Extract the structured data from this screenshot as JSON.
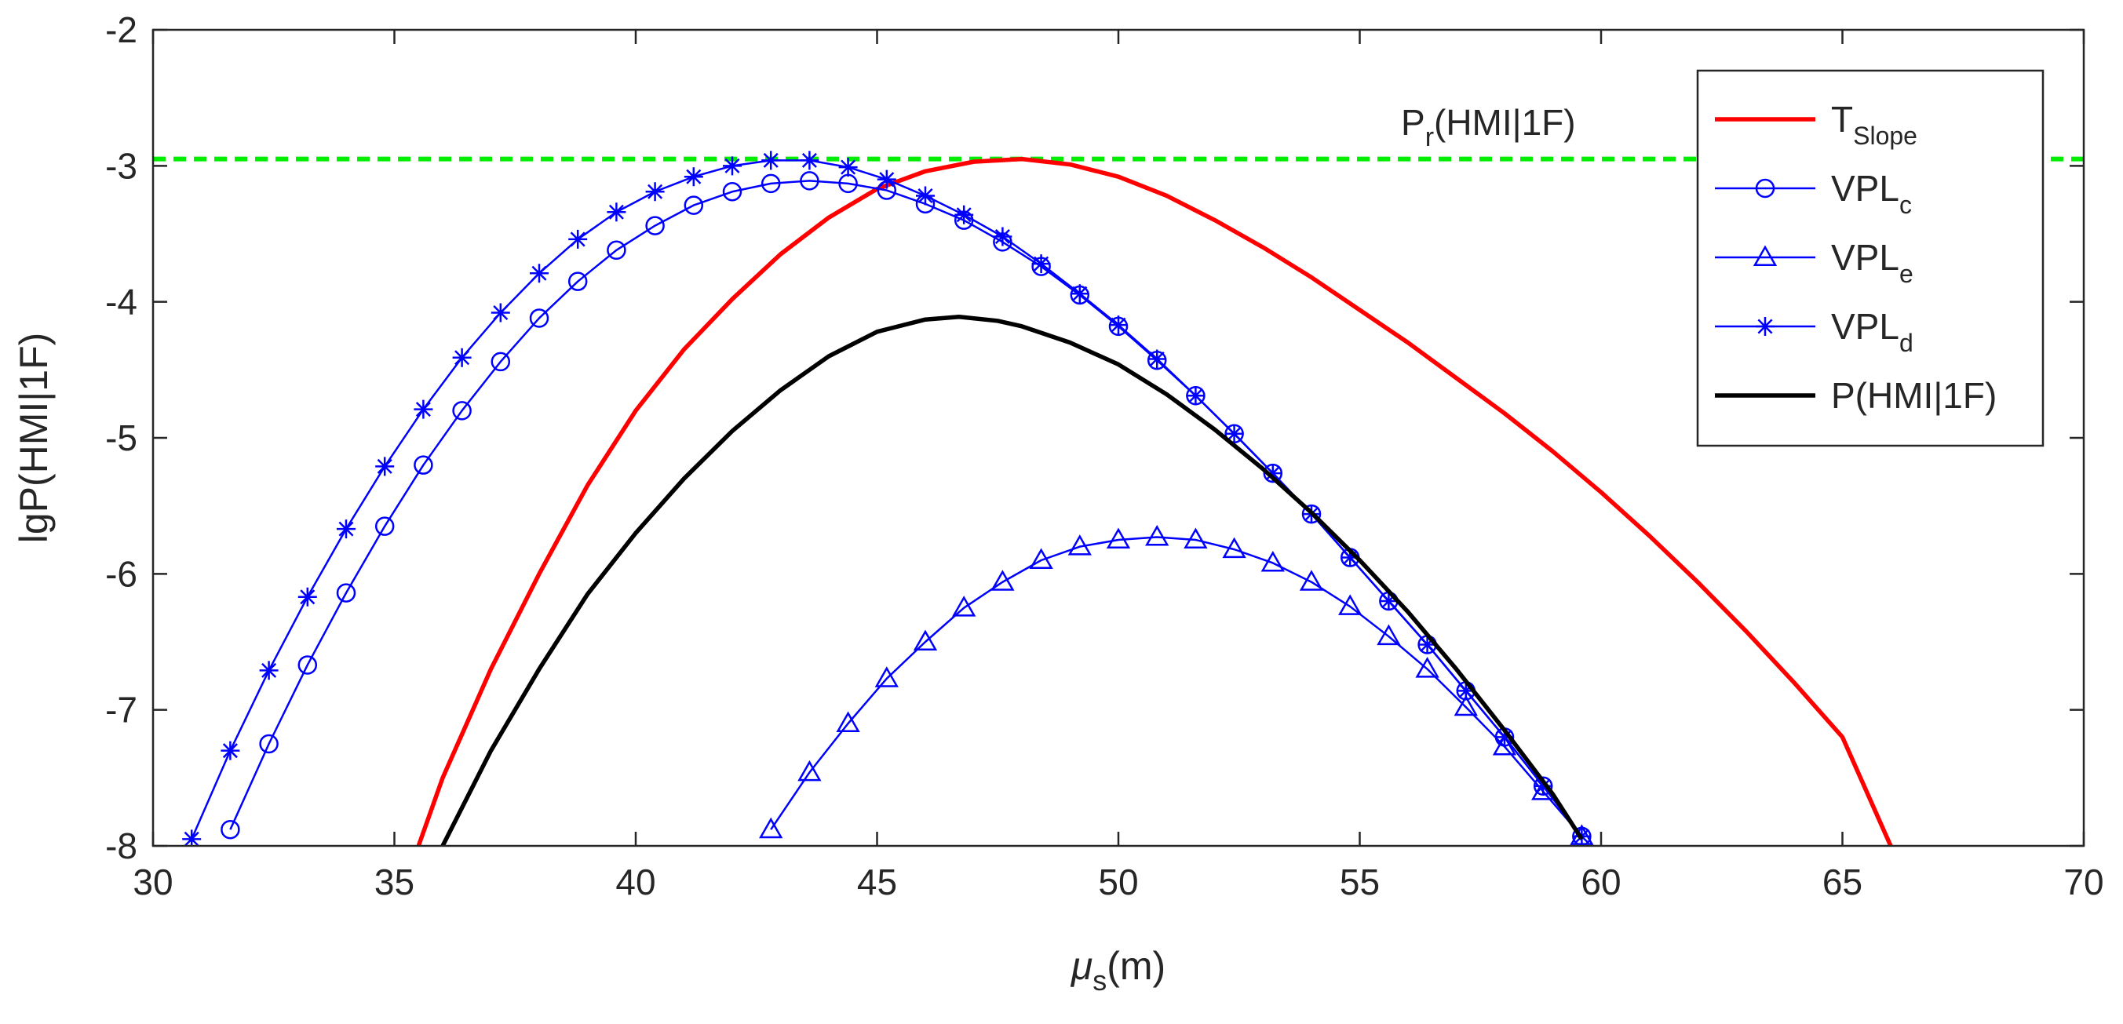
{
  "chart_data": {
    "type": "line",
    "title": "",
    "xlabel": "(m)",
    "xlabel_symbol": "μ",
    "xlabel_sub": "s",
    "ylabel": "lgP(HMI|1F)",
    "xlim": [
      30,
      70
    ],
    "ylim": [
      -8,
      -2
    ],
    "xticks": [
      30,
      35,
      40,
      45,
      50,
      55,
      60,
      65,
      70
    ],
    "yticks": [
      -2,
      -3,
      -4,
      -5,
      -6,
      -7,
      -8
    ],
    "grid": false,
    "legend_position": "top-right",
    "reference_line": {
      "y": -2.95,
      "color": "#00ee00",
      "label_main": "P",
      "label_sub": "r",
      "label_rest": "(HMI|1F)"
    },
    "series": [
      {
        "name": "T_Slope",
        "label_main": "T",
        "label_sub": "Slope",
        "color": "#ff0000",
        "marker": "none",
        "x": [
          35.5,
          36,
          37,
          38,
          39,
          40,
          41,
          42,
          43,
          44,
          45,
          46,
          47,
          48,
          49,
          50,
          51,
          52,
          53,
          54,
          55,
          56,
          57,
          58,
          59,
          60,
          61,
          62,
          63,
          64,
          65,
          66
        ],
        "y": [
          -8.0,
          -7.5,
          -6.7,
          -6.0,
          -5.35,
          -4.8,
          -4.35,
          -3.98,
          -3.65,
          -3.38,
          -3.17,
          -3.04,
          -2.97,
          -2.95,
          -2.99,
          -3.08,
          -3.22,
          -3.4,
          -3.6,
          -3.82,
          -4.06,
          -4.3,
          -4.56,
          -4.82,
          -5.1,
          -5.4,
          -5.72,
          -6.06,
          -6.42,
          -6.8,
          -7.2,
          -8.0
        ]
      },
      {
        "name": "VPL_c",
        "label_main": "VPL",
        "label_sub": "c",
        "color": "#0000ff",
        "marker": "circle",
        "x": [
          31.6,
          32.4,
          33.2,
          34.0,
          34.8,
          35.6,
          36.4,
          37.2,
          38.0,
          38.8,
          39.6,
          40.4,
          41.2,
          42.0,
          42.8,
          43.6,
          44.4,
          45.2,
          46.0,
          46.8,
          47.6,
          48.4,
          49.2,
          50.0,
          50.8,
          51.6,
          52.4,
          53.2,
          54.0,
          54.8,
          55.6,
          56.4,
          57.2,
          58.0,
          58.8,
          59.6
        ],
        "y": [
          -7.88,
          -7.25,
          -6.67,
          -6.14,
          -5.65,
          -5.2,
          -4.8,
          -4.44,
          -4.12,
          -3.85,
          -3.62,
          -3.44,
          -3.29,
          -3.19,
          -3.13,
          -3.11,
          -3.13,
          -3.18,
          -3.28,
          -3.4,
          -3.56,
          -3.74,
          -3.95,
          -4.18,
          -4.43,
          -4.69,
          -4.97,
          -5.26,
          -5.56,
          -5.88,
          -6.2,
          -6.52,
          -6.86,
          -7.2,
          -7.56,
          -7.93
        ]
      },
      {
        "name": "VPL_e",
        "label_main": "VPL",
        "label_sub": "e",
        "color": "#0000ff",
        "marker": "triangle",
        "x": [
          42.8,
          43.6,
          44.4,
          45.2,
          46.0,
          46.8,
          47.6,
          48.4,
          49.2,
          50.0,
          50.8,
          51.6,
          52.4,
          53.2,
          54.0,
          54.8,
          55.6,
          56.4,
          57.2,
          58.0,
          58.8,
          59.6
        ],
        "y": [
          -7.88,
          -7.46,
          -7.1,
          -6.77,
          -6.5,
          -6.25,
          -6.06,
          -5.9,
          -5.8,
          -5.75,
          -5.73,
          -5.75,
          -5.82,
          -5.92,
          -6.06,
          -6.24,
          -6.46,
          -6.7,
          -6.98,
          -7.27,
          -7.6,
          -7.93
        ]
      },
      {
        "name": "VPL_d",
        "label_main": "VPL",
        "label_sub": "d",
        "color": "#0000ff",
        "marker": "asterisk",
        "x": [
          30.8,
          31.6,
          32.4,
          33.2,
          34.0,
          34.8,
          35.6,
          36.4,
          37.2,
          38.0,
          38.8,
          39.6,
          40.4,
          41.2,
          42.0,
          42.8,
          43.6,
          44.4,
          45.2,
          46.0,
          46.8,
          47.6,
          48.4,
          49.2,
          50.0,
          50.8,
          51.6,
          52.4,
          53.2,
          54.0,
          54.8,
          55.6,
          56.4,
          57.2,
          58.0,
          58.8,
          59.6
        ],
        "y": [
          -7.95,
          -7.3,
          -6.71,
          -6.17,
          -5.67,
          -5.21,
          -4.79,
          -4.41,
          -4.08,
          -3.79,
          -3.54,
          -3.34,
          -3.19,
          -3.08,
          -3.0,
          -2.96,
          -2.96,
          -3.01,
          -3.1,
          -3.22,
          -3.36,
          -3.52,
          -3.72,
          -3.94,
          -4.17,
          -4.42,
          -4.69,
          -4.97,
          -5.26,
          -5.56,
          -5.88,
          -6.2,
          -6.52,
          -6.86,
          -7.2,
          -7.56,
          -7.93
        ]
      },
      {
        "name": "P(HMI|1F)",
        "label_main": "P(HMI|1F)",
        "label_sub": "",
        "color": "#000000",
        "marker": "none",
        "x": [
          36,
          37,
          38,
          39,
          40,
          41,
          42,
          43,
          44,
          45,
          46,
          46.7,
          47.5,
          48,
          49,
          50,
          51,
          52,
          53,
          54,
          55,
          56,
          57,
          58,
          59,
          59.6
        ],
        "y": [
          -8.0,
          -7.3,
          -6.7,
          -6.15,
          -5.7,
          -5.3,
          -4.95,
          -4.65,
          -4.4,
          -4.22,
          -4.13,
          -4.11,
          -4.14,
          -4.18,
          -4.3,
          -4.46,
          -4.68,
          -4.94,
          -5.23,
          -5.55,
          -5.9,
          -6.28,
          -6.7,
          -7.15,
          -7.62,
          -7.95
        ]
      }
    ]
  }
}
